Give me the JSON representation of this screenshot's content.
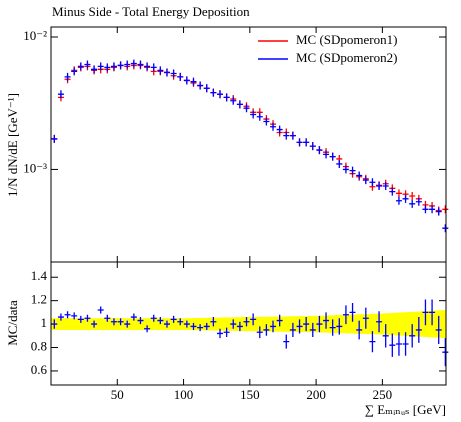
{
  "chart_data": [
    {
      "type": "scatter",
      "title": "Minus Side - Total Energy Deposition",
      "y_label": "1/N dN/dE [GeV⁻¹]",
      "log_y": true,
      "legend": "upper-right",
      "x": [
        2.5,
        7.5,
        12.5,
        17.5,
        22.5,
        27.5,
        32.5,
        37.5,
        42.5,
        47.5,
        52.5,
        57.5,
        62.5,
        67.5,
        72.5,
        77.5,
        82.5,
        87.5,
        92.5,
        97.5,
        102.5,
        107.5,
        112.5,
        117.5,
        122.5,
        127.5,
        132.5,
        137.5,
        142.5,
        147.5,
        152.5,
        157.5,
        162.5,
        167.5,
        172.5,
        177.5,
        182.5,
        187.5,
        192.5,
        197.5,
        202.5,
        207.5,
        212.5,
        217.5,
        222.5,
        227.5,
        232.5,
        237.5,
        242.5,
        247.5,
        252.5,
        257.5,
        262.5,
        267.5,
        272.5,
        277.5,
        282.5,
        287.5,
        292.5,
        297.5
      ],
      "series": [
        {
          "name": "MC (SDpomeron1)",
          "color": "#ff0000",
          "values": [
            0.0017,
            0.0035,
            0.0048,
            0.0056,
            0.0059,
            0.006,
            0.0056,
            0.0057,
            0.0057,
            0.0059,
            0.0061,
            0.006,
            0.0061,
            0.0061,
            0.0059,
            0.0055,
            0.0055,
            0.0054,
            0.0051,
            0.005,
            0.0047,
            0.0045,
            0.0043,
            0.0041,
            0.0038,
            0.0037,
            0.0035,
            0.0034,
            0.0031,
            0.003,
            0.0027,
            0.0027,
            0.0024,
            0.0022,
            0.0019,
            0.0019,
            0.0018,
            0.0016,
            0.0016,
            0.0015,
            0.0014,
            0.00135,
            0.00125,
            0.0012,
            0.00105,
            0.00093,
            0.00088,
            0.00085,
            0.00074,
            0.00076,
            0.00078,
            0.00072,
            0.00066,
            0.00065,
            0.00063,
            0.0006,
            0.00054,
            0.00053,
            0.00049,
            0.0005
          ]
        },
        {
          "name": "MC (SDpomeron2)",
          "color": "#0000ff",
          "values": [
            0.0017,
            0.0037,
            0.005,
            0.0055,
            0.006,
            0.0062,
            0.0057,
            0.006,
            0.0059,
            0.006,
            0.0061,
            0.0062,
            0.0063,
            0.0062,
            0.006,
            0.0059,
            0.0056,
            0.0054,
            0.0053,
            0.005,
            0.0047,
            0.0046,
            0.0043,
            0.0041,
            0.0038,
            0.0037,
            0.0035,
            0.0033,
            0.0031,
            0.0029,
            0.0026,
            0.0025,
            0.0023,
            0.0021,
            0.002,
            0.0018,
            0.0018,
            0.0016,
            0.0016,
            0.0015,
            0.0014,
            0.0013,
            0.00125,
            0.0011,
            0.001,
            0.00098,
            0.0009,
            0.00083,
            0.0008,
            0.00075,
            0.00075,
            0.00068,
            0.00058,
            0.0006,
            0.00055,
            0.00057,
            0.0005,
            0.0005,
            0.00048,
            0.00036
          ]
        }
      ],
      "xlim": [
        0,
        298
      ],
      "xticks": [
        50,
        100,
        150,
        200,
        250
      ],
      "ylim": [
        0.0002,
        0.0119
      ],
      "yticks": [
        {
          "value": 0.01,
          "label": "10⁻²"
        },
        {
          "value": 0.001,
          "label": "10⁻³"
        }
      ]
    },
    {
      "type": "ratio",
      "x_label": "∑ Eₘᵢₙᵤₛ [GeV]",
      "y_label": "MC/data",
      "x": [
        2.5,
        7.5,
        12.5,
        17.5,
        22.5,
        27.5,
        32.5,
        37.5,
        42.5,
        47.5,
        52.5,
        57.5,
        62.5,
        67.5,
        72.5,
        77.5,
        82.5,
        87.5,
        92.5,
        97.5,
        102.5,
        107.5,
        112.5,
        117.5,
        122.5,
        127.5,
        132.5,
        137.5,
        142.5,
        147.5,
        152.5,
        157.5,
        162.5,
        167.5,
        172.5,
        177.5,
        182.5,
        187.5,
        192.5,
        197.5,
        202.5,
        207.5,
        212.5,
        217.5,
        222.5,
        227.5,
        232.5,
        237.5,
        242.5,
        247.5,
        252.5,
        257.5,
        262.5,
        267.5,
        272.5,
        277.5,
        282.5,
        287.5,
        292.5,
        297.5
      ],
      "series": [
        {
          "color": "#0000ff",
          "values": [
            1.0,
            1.06,
            1.08,
            1.07,
            1.04,
            1.05,
            1.0,
            1.12,
            1.05,
            1.02,
            1.02,
            1.0,
            1.06,
            1.03,
            0.96,
            1.05,
            1.03,
            1.0,
            1.04,
            1.02,
            1.0,
            0.98,
            0.97,
            0.98,
            1.02,
            0.92,
            0.93,
            1.0,
            0.98,
            1.02,
            1.04,
            0.93,
            0.95,
            0.98,
            1.03,
            0.85,
            0.95,
            0.98,
            1.0,
            0.95,
            1.0,
            1.03,
            0.97,
            0.98,
            1.08,
            1.1,
            0.95,
            1.05,
            0.85,
            1.02,
            0.9,
            0.82,
            0.83,
            0.83,
            0.9,
            0.95,
            1.1,
            1.1,
            0.95,
            0.76
          ],
          "errors": [
            0.04,
            0.03,
            0.03,
            0.03,
            0.03,
            0.03,
            0.03,
            0.03,
            0.03,
            0.03,
            0.03,
            0.03,
            0.03,
            0.03,
            0.03,
            0.03,
            0.03,
            0.03,
            0.03,
            0.03,
            0.03,
            0.03,
            0.03,
            0.03,
            0.04,
            0.04,
            0.04,
            0.04,
            0.04,
            0.04,
            0.05,
            0.05,
            0.05,
            0.05,
            0.05,
            0.06,
            0.06,
            0.06,
            0.06,
            0.06,
            0.07,
            0.07,
            0.07,
            0.07,
            0.08,
            0.08,
            0.08,
            0.09,
            0.09,
            0.09,
            0.1,
            0.1,
            0.1,
            0.1,
            0.1,
            0.11,
            0.11,
            0.11,
            0.12,
            0.12
          ]
        }
      ],
      "band": {
        "color": "#ffff00",
        "x": [
          0,
          50,
          100,
          150,
          200,
          250,
          298
        ],
        "lower": [
          0.95,
          0.95,
          0.95,
          0.94,
          0.93,
          0.91,
          0.88
        ],
        "upper": [
          1.05,
          1.05,
          1.05,
          1.06,
          1.07,
          1.09,
          1.12
        ]
      },
      "xlim": [
        0,
        298
      ],
      "xticks": [
        50,
        100,
        150,
        200,
        250
      ],
      "ylim": [
        0.48,
        1.53
      ],
      "yticks": [
        0.6,
        0.8,
        1,
        1.2,
        1.4
      ]
    }
  ]
}
